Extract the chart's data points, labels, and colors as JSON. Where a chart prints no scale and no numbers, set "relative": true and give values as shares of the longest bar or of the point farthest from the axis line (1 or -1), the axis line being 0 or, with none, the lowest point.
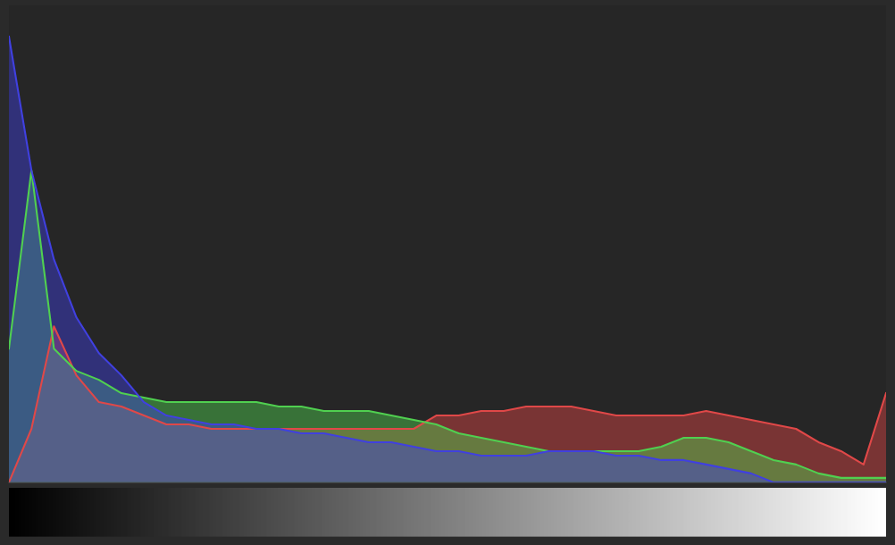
{
  "chart_data": {
    "type": "area",
    "relative": true,
    "categories": [
      null,
      null,
      null,
      null,
      null,
      null,
      null,
      null,
      null,
      null,
      null,
      null,
      null,
      null,
      null,
      null,
      null,
      null,
      null,
      null,
      null,
      null,
      null,
      null,
      null,
      null,
      null,
      null,
      null,
      null,
      null,
      null,
      null,
      null,
      null,
      null,
      null,
      null,
      null,
      null
    ],
    "series": [
      {
        "color": "#e04848",
        "values": [
          0.0,
          0.12,
          0.35,
          0.24,
          0.18,
          0.17,
          0.15,
          0.13,
          0.13,
          0.12,
          0.12,
          0.12,
          0.12,
          0.12,
          0.12,
          0.12,
          0.12,
          0.12,
          0.12,
          0.15,
          0.15,
          0.16,
          0.16,
          0.17,
          0.17,
          0.17,
          0.16,
          0.15,
          0.15,
          0.15,
          0.15,
          0.16,
          0.15,
          0.14,
          0.13,
          0.12,
          0.09,
          0.07,
          0.04,
          0.2
        ]
      },
      {
        "color": "#50d050",
        "values": [
          0.3,
          0.7,
          0.3,
          0.25,
          0.23,
          0.2,
          0.19,
          0.18,
          0.18,
          0.18,
          0.18,
          0.18,
          0.17,
          0.17,
          0.16,
          0.16,
          0.16,
          0.15,
          0.14,
          0.13,
          0.11,
          0.1,
          0.09,
          0.08,
          0.07,
          0.07,
          0.07,
          0.07,
          0.07,
          0.08,
          0.1,
          0.1,
          0.09,
          0.07,
          0.05,
          0.04,
          0.02,
          0.01,
          0.01,
          0.01
        ]
      },
      {
        "color": "#4040e0",
        "values": [
          1.0,
          0.7,
          0.5,
          0.37,
          0.29,
          0.24,
          0.18,
          0.15,
          0.14,
          0.13,
          0.13,
          0.12,
          0.12,
          0.11,
          0.11,
          0.1,
          0.09,
          0.09,
          0.08,
          0.07,
          0.07,
          0.06,
          0.06,
          0.06,
          0.07,
          0.07,
          0.07,
          0.06,
          0.06,
          0.05,
          0.05,
          0.04,
          0.03,
          0.02,
          0.0,
          0.0,
          0.0,
          0.0,
          0.0,
          0.0
        ]
      }
    ]
  }
}
